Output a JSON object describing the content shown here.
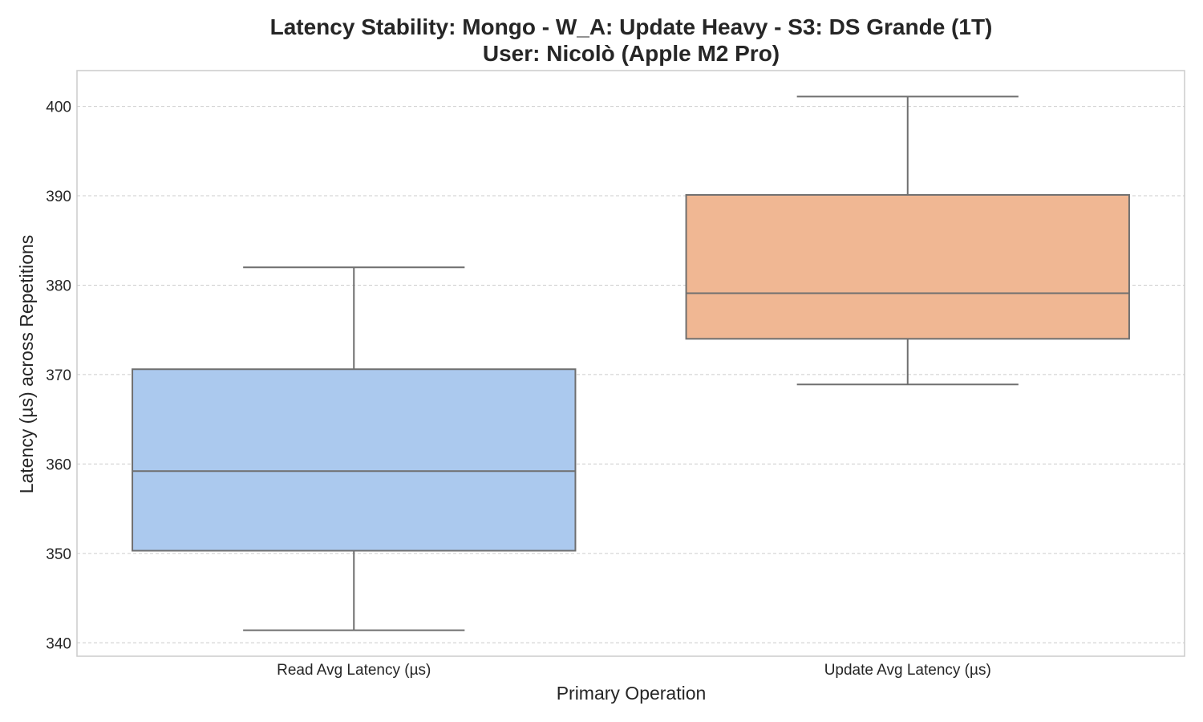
{
  "chart_data": {
    "type": "boxplot",
    "title": "Latency Stability: Mongo - W_A: Update Heavy - S3: DS Grande (1T)",
    "subtitle": "User: Nicolò (Apple M2 Pro)",
    "xlabel": "Primary Operation",
    "ylabel": "Latency (µs) across Repetitions",
    "ylim": [
      338.5,
      404.0
    ],
    "yticks": [
      340,
      350,
      360,
      370,
      380,
      390,
      400
    ],
    "grid": true,
    "categories": [
      "Read Avg Latency (µs)",
      "Update Avg Latency (µs)"
    ],
    "boxes": [
      {
        "name": "Read Avg Latency (µs)",
        "whisker_low": 341.4,
        "q1": 350.3,
        "median": 359.2,
        "q3": 370.6,
        "whisker_high": 382.0,
        "color": "#abc9ee"
      },
      {
        "name": "Update Avg Latency (µs)",
        "whisker_low": 368.9,
        "q1": 374.0,
        "median": 379.1,
        "q3": 390.1,
        "whisker_high": 401.1,
        "color": "#f0b793"
      }
    ],
    "colors": {
      "edge": "#6f6f6f",
      "grid": "#cccccc",
      "frame": "#cccccc"
    }
  }
}
